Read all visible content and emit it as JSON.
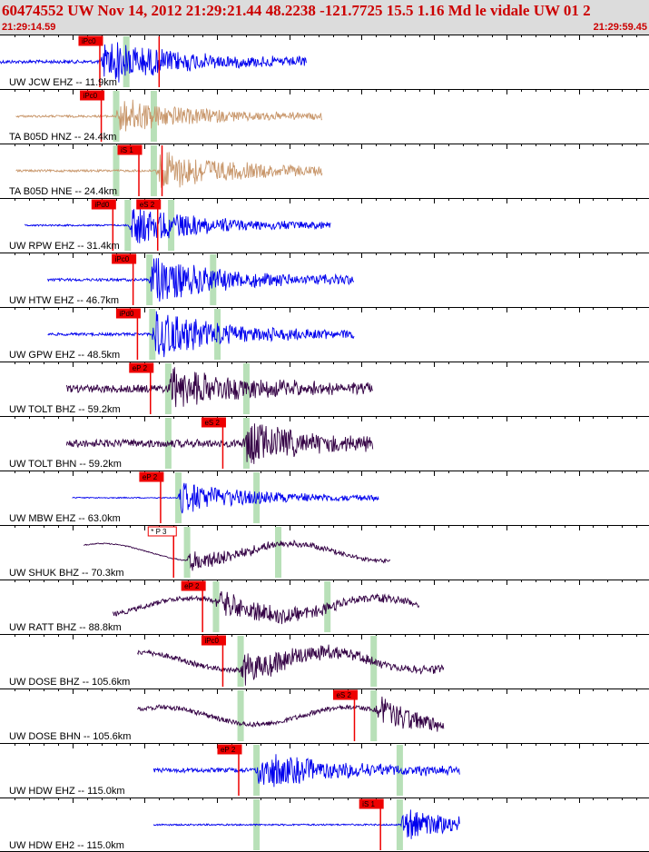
{
  "header": {
    "title": "60474552 UW Nov 14, 2012 21:29:21.44   48.2238 -121.7725 15.5 1.16 Md le vidale UW 01   2",
    "start_time": "21:29:14.59",
    "end_time": "21:29:59.45"
  },
  "colors": {
    "header_bg": "#dcdcdc",
    "header_text": "#cc0000",
    "pick": "#ee0000",
    "window": "#b8e0b8"
  },
  "chart_data": {
    "type": "line",
    "x_unit": "s",
    "xlim": [
      0,
      44.86
    ],
    "traces": [
      {
        "label": "UW JCW EHZ -- 11.9km",
        "color": "#0000ee",
        "start": 0.0,
        "end": 21.2,
        "onset": 7.0,
        "amp": 0.42,
        "noise": 0.06,
        "kind": "bb",
        "picks": [
          {
            "text": "iPc0",
            "time": 6.9,
            "color": "red"
          },
          {
            "text": "",
            "time": 11.0,
            "color": "red"
          }
        ],
        "windows": [
          {
            "time": 8.7
          }
        ]
      },
      {
        "label": "TA B05D HNZ -- 24.4km",
        "color": "#c8966a",
        "start": 1.1,
        "end": 22.3,
        "onset": 8.0,
        "amp": 0.33,
        "noise": 0.04,
        "kind": "bb",
        "picks": [
          {
            "text": "iPc0",
            "time": 7.0,
            "color": "red"
          }
        ],
        "windows": [
          {
            "time": 8.0
          },
          {
            "time": 10.6
          }
        ]
      },
      {
        "label": "TA B05D HNE -- 24.4km",
        "color": "#c8966a",
        "start": 1.1,
        "end": 22.3,
        "onset": 10.8,
        "amp": 0.38,
        "noise": 0.04,
        "kind": "bb",
        "picks": [
          {
            "text": "iS 1",
            "time": 9.6,
            "color": "red"
          },
          {
            "text": "",
            "time": 11.2,
            "color": "red"
          }
        ],
        "windows": [
          {
            "time": 8.0
          },
          {
            "time": 10.6
          }
        ]
      },
      {
        "label": "UW RPW EHZ -- 31.4km",
        "color": "#0000ee",
        "start": 1.7,
        "end": 22.9,
        "onset": 8.9,
        "amp": 0.35,
        "noise": 0.03,
        "kind": "bb",
        "picks": [
          {
            "text": "iPd0",
            "time": 7.8,
            "color": "red"
          },
          {
            "text": "eS 2",
            "time": 10.9,
            "color": "red"
          }
        ],
        "windows": [
          {
            "time": 8.8
          },
          {
            "time": 11.8
          }
        ]
      },
      {
        "label": "UW HTW EHZ -- 46.7km",
        "color": "#0000ee",
        "start": 3.3,
        "end": 24.5,
        "onset": 10.3,
        "amp": 0.42,
        "noise": 0.05,
        "kind": "bb",
        "picks": [
          {
            "text": "iPc0",
            "time": 9.2,
            "color": "red"
          }
        ],
        "windows": [
          {
            "time": 10.3
          },
          {
            "time": 14.7
          }
        ]
      },
      {
        "label": "UW GPW EHZ -- 48.5km",
        "color": "#0000ee",
        "start": 3.3,
        "end": 24.5,
        "onset": 10.5,
        "amp": 0.42,
        "noise": 0.05,
        "kind": "bb",
        "picks": [
          {
            "text": "iPd0",
            "time": 9.5,
            "color": "red"
          }
        ],
        "windows": [
          {
            "time": 10.5
          },
          {
            "time": 15.0
          }
        ]
      },
      {
        "label": "UW TOLT BHZ -- 59.2km",
        "color": "#330044",
        "start": 4.6,
        "end": 25.8,
        "onset": 11.6,
        "amp": 0.38,
        "noise": 0.14,
        "kind": "bb",
        "picks": [
          {
            "text": "eP 2",
            "time": 10.4,
            "color": "red"
          }
        ],
        "windows": [
          {
            "time": 11.6
          },
          {
            "time": 17.0
          }
        ]
      },
      {
        "label": "UW TOLT BHN -- 59.2km",
        "color": "#330044",
        "start": 4.6,
        "end": 25.8,
        "onset": 16.8,
        "amp": 0.36,
        "noise": 0.14,
        "kind": "bb",
        "picks": [
          {
            "text": "eS 2",
            "time": 15.4,
            "color": "red"
          }
        ],
        "windows": [
          {
            "time": 11.6
          },
          {
            "time": 17.0
          }
        ]
      },
      {
        "label": "UW MBW EHZ -- 63.0km",
        "color": "#0000ee",
        "start": 5.0,
        "end": 26.2,
        "onset": 12.3,
        "amp": 0.28,
        "noise": 0.02,
        "kind": "bb",
        "picks": [
          {
            "text": "eP 2",
            "time": 11.1,
            "color": "red"
          }
        ],
        "windows": [
          {
            "time": 12.3
          },
          {
            "time": 17.7
          }
        ]
      },
      {
        "label": "UW SHUK BHZ -- 70.3km",
        "color": "#330044",
        "start": 5.8,
        "end": 27.0,
        "onset": 12.9,
        "amp": 0.18,
        "noise": 0.02,
        "kind": "lp",
        "picks": [
          {
            "text": "* P 3",
            "time": 12.0,
            "color": "outline"
          }
        ],
        "windows": [
          {
            "time": 12.9
          },
          {
            "time": 19.2
          }
        ]
      },
      {
        "label": "UW RATT BHZ -- 88.8km",
        "color": "#330044",
        "start": 7.8,
        "end": 29.0,
        "onset": 14.9,
        "amp": 0.25,
        "noise": 0.09,
        "kind": "lp",
        "picks": [
          {
            "text": "eP 2",
            "time": 14.0,
            "color": "red"
          }
        ],
        "windows": [
          {
            "time": 14.9
          },
          {
            "time": 22.6
          }
        ]
      },
      {
        "label": "UW DOSE BHZ -- 105.6km",
        "color": "#330044",
        "start": 9.5,
        "end": 30.7,
        "onset": 16.6,
        "amp": 0.28,
        "noise": 0.09,
        "kind": "lp",
        "picks": [
          {
            "text": "iPc0",
            "time": 15.4,
            "color": "red"
          }
        ],
        "windows": [
          {
            "time": 16.6
          },
          {
            "time": 25.8
          }
        ]
      },
      {
        "label": "UW DOSE BHN -- 105.6km",
        "color": "#330044",
        "start": 9.5,
        "end": 30.7,
        "onset": 25.9,
        "amp": 0.26,
        "noise": 0.09,
        "kind": "lp",
        "picks": [
          {
            "text": "eS 2",
            "time": 24.5,
            "color": "red"
          }
        ],
        "windows": [
          {
            "time": 16.6
          },
          {
            "time": 25.8
          }
        ]
      },
      {
        "label": "UW HDW EHZ -- 115.0km",
        "color": "#0000ee",
        "start": 10.6,
        "end": 31.8,
        "onset": 17.7,
        "amp": 0.35,
        "noise": 0.08,
        "kind": "bb",
        "picks": [
          {
            "text": "eP 2",
            "time": 16.5,
            "color": "red"
          }
        ],
        "windows": [
          {
            "time": 17.7
          },
          {
            "time": 27.6
          }
        ]
      },
      {
        "label": "UW HDW EH2 -- 115.0km",
        "color": "#0000ee",
        "start": 10.6,
        "end": 31.8,
        "onset": 27.7,
        "amp": 0.28,
        "noise": 0.03,
        "kind": "bb",
        "picks": [
          {
            "text": "iS 1",
            "time": 26.3,
            "color": "red"
          }
        ],
        "windows": [
          {
            "time": 17.7
          },
          {
            "time": 27.6
          }
        ]
      }
    ]
  }
}
